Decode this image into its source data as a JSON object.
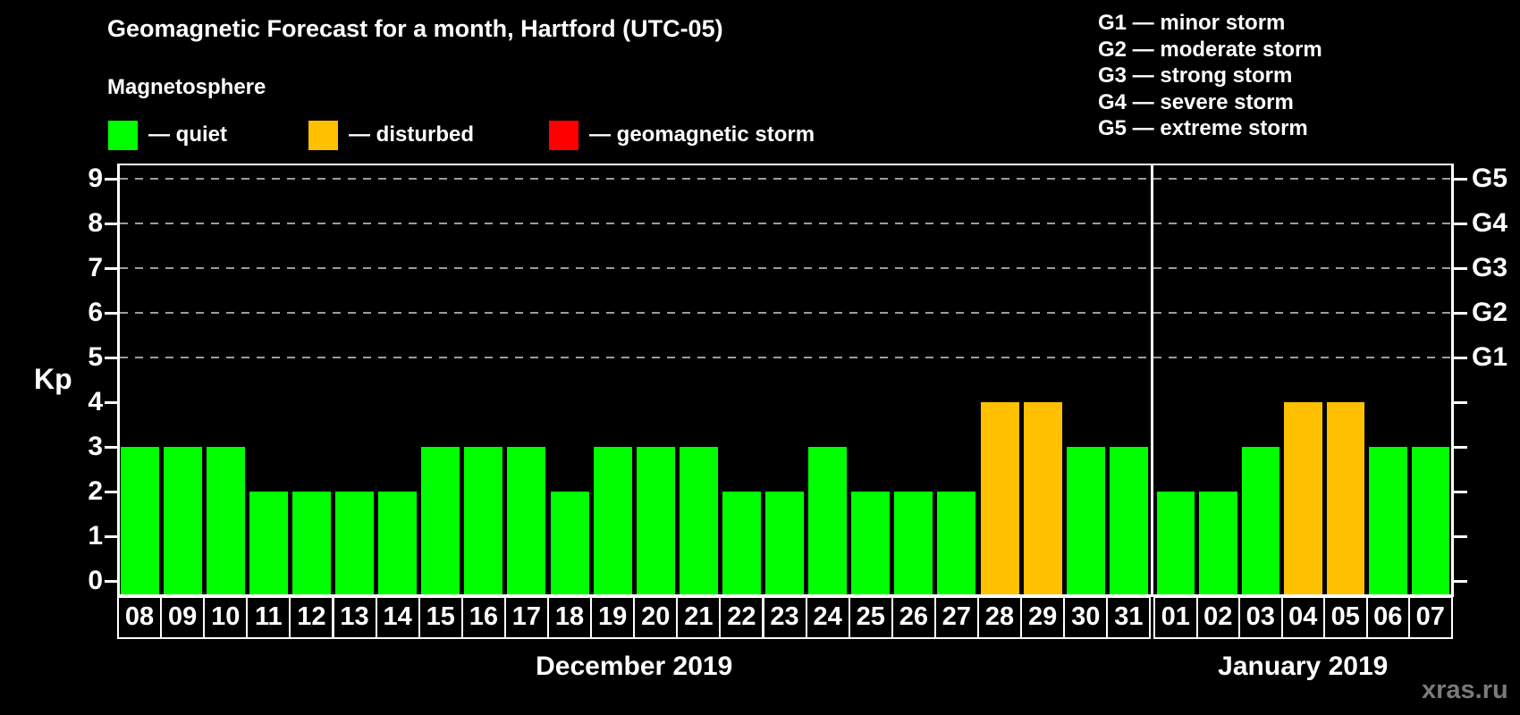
{
  "title": "Geomagnetic Forecast for a month, Hartford (UTC-05)",
  "subtitle": "Magnetosphere",
  "legend": {
    "items": [
      {
        "key": "quiet",
        "label": "— quiet",
        "color": "#00FF00"
      },
      {
        "key": "disturbed",
        "label": "— disturbed",
        "color": "#FFC000"
      },
      {
        "key": "storm",
        "label": "— geomagnetic storm",
        "color": "#FF0000"
      }
    ]
  },
  "storm_scale_legend": [
    "G1 — minor storm",
    "G2 — moderate storm",
    "G3 — strong storm",
    "G4 — severe storm",
    "G5 — extreme storm"
  ],
  "watermark": "xras.ru",
  "chart_data": {
    "type": "bar",
    "ylabel": "Kp",
    "ylim": [
      0,
      9
    ],
    "yticks": [
      0,
      1,
      2,
      3,
      4,
      5,
      6,
      7,
      8,
      9
    ],
    "gridlines_at_kp": [
      5,
      6,
      7,
      8,
      9
    ],
    "right_axis": [
      {
        "label": "G1",
        "kp": 5
      },
      {
        "label": "G2",
        "kp": 6
      },
      {
        "label": "G3",
        "kp": 7
      },
      {
        "label": "G4",
        "kp": 8
      },
      {
        "label": "G5",
        "kp": 9
      }
    ],
    "status_colors": {
      "quiet": "#00FF00",
      "disturbed": "#FFC000",
      "storm": "#FF0000"
    },
    "groups": [
      {
        "label": "December 2019",
        "days": [
          "08",
          "09",
          "10",
          "11",
          "12",
          "13",
          "14",
          "15",
          "16",
          "17",
          "18",
          "19",
          "20",
          "21",
          "22",
          "23",
          "24",
          "25",
          "26",
          "27",
          "28",
          "29",
          "30",
          "31"
        ],
        "values": [
          3,
          3,
          3,
          2,
          2,
          2,
          2,
          3,
          3,
          3,
          2,
          3,
          3,
          3,
          2,
          2,
          3,
          2,
          2,
          2,
          4,
          4,
          3,
          3
        ],
        "statuses": [
          "quiet",
          "quiet",
          "quiet",
          "quiet",
          "quiet",
          "quiet",
          "quiet",
          "quiet",
          "quiet",
          "quiet",
          "quiet",
          "quiet",
          "quiet",
          "quiet",
          "quiet",
          "quiet",
          "quiet",
          "quiet",
          "quiet",
          "quiet",
          "disturbed",
          "disturbed",
          "quiet",
          "quiet"
        ]
      },
      {
        "label": "January 2019",
        "days": [
          "01",
          "02",
          "03",
          "04",
          "05",
          "06",
          "07"
        ],
        "values": [
          2,
          2,
          3,
          4,
          4,
          3,
          3
        ],
        "statuses": [
          "quiet",
          "quiet",
          "quiet",
          "disturbed",
          "disturbed",
          "quiet",
          "quiet"
        ]
      }
    ]
  }
}
